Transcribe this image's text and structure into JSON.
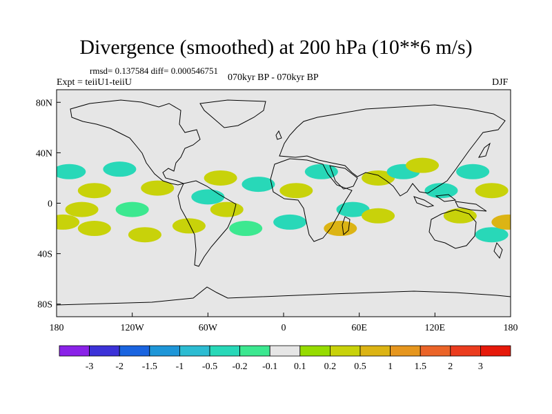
{
  "title": "Divergence (smoothed) at 200 hPa (10**6 m/s)",
  "stats": "rmsd= 0.137584 diff= 0.000546751",
  "experiment": "Expt = teiiU1-teiiU",
  "period": "070kyr BP - 070kyr BP",
  "season": "DJF",
  "map": {
    "lon_range": [
      -180,
      180
    ],
    "lat_range": [
      -90,
      90
    ],
    "background": "#e6e6e6",
    "coastline_color": "#000000"
  },
  "axes": {
    "x_ticks": [
      {
        "lon": -180,
        "label": "180"
      },
      {
        "lon": -120,
        "label": "120W"
      },
      {
        "lon": -60,
        "label": "60W"
      },
      {
        "lon": 0,
        "label": "0"
      },
      {
        "lon": 60,
        "label": "60E"
      },
      {
        "lon": 120,
        "label": "120E"
      },
      {
        "lon": 180,
        "label": "180"
      }
    ],
    "y_ticks": [
      {
        "lat": 80,
        "label": "80N"
      },
      {
        "lat": 40,
        "label": "40N"
      },
      {
        "lat": 0,
        "label": "0"
      },
      {
        "lat": -40,
        "label": "40S"
      },
      {
        "lat": -80,
        "label": "80S"
      }
    ]
  },
  "colorbar": {
    "colors": [
      "#8a22e8",
      "#3c32d8",
      "#1a64e0",
      "#1e96d8",
      "#2cbcd2",
      "#28d8b8",
      "#3ce890",
      "#e6e6e6",
      "#96dc00",
      "#c8d20a",
      "#dcb414",
      "#e6961e",
      "#eb6428",
      "#eb3c1e",
      "#e6190a"
    ],
    "labels": [
      "-3",
      "-2",
      "-1.5",
      "-1",
      "-0.5",
      "-0.2",
      "-0.1",
      "0.1",
      "0.2",
      "0.5",
      "1",
      "1.5",
      "2",
      "3"
    ]
  },
  "anomalies": [
    {
      "lon": -150,
      "lat": 10,
      "value": 0.3
    },
    {
      "lon": -160,
      "lat": -5,
      "value": 0.4
    },
    {
      "lon": -100,
      "lat": 12,
      "value": 0.3
    },
    {
      "lon": -170,
      "lat": 25,
      "value": -0.2
    },
    {
      "lon": -130,
      "lat": 27,
      "value": -0.2
    },
    {
      "lon": -120,
      "lat": -5,
      "value": -0.15
    },
    {
      "lon": -150,
      "lat": -20,
      "value": 0.3
    },
    {
      "lon": -175,
      "lat": -15,
      "value": 0.5
    },
    {
      "lon": -110,
      "lat": -25,
      "value": 0.3
    },
    {
      "lon": -75,
      "lat": -18,
      "value": 0.3
    },
    {
      "lon": -60,
      "lat": 5,
      "value": -0.2
    },
    {
      "lon": -50,
      "lat": 20,
      "value": 0.3
    },
    {
      "lon": -45,
      "lat": -5,
      "value": 0.4
    },
    {
      "lon": -20,
      "lat": 15,
      "value": -0.2
    },
    {
      "lon": -30,
      "lat": -20,
      "value": -0.15
    },
    {
      "lon": 10,
      "lat": 10,
      "value": 0.3
    },
    {
      "lon": 5,
      "lat": -15,
      "value": -0.2
    },
    {
      "lon": 30,
      "lat": 25,
      "value": -0.2
    },
    {
      "lon": 45,
      "lat": -20,
      "value": 0.6
    },
    {
      "lon": 55,
      "lat": -5,
      "value": -0.3
    },
    {
      "lon": 75,
      "lat": 20,
      "value": 0.3
    },
    {
      "lon": 75,
      "lat": -10,
      "value": 0.3
    },
    {
      "lon": 95,
      "lat": 25,
      "value": -0.2
    },
    {
      "lon": 110,
      "lat": 30,
      "value": 0.3
    },
    {
      "lon": 125,
      "lat": 10,
      "value": -0.4
    },
    {
      "lon": 140,
      "lat": -10,
      "value": 0.4
    },
    {
      "lon": 150,
      "lat": 25,
      "value": -0.2
    },
    {
      "lon": 165,
      "lat": 10,
      "value": 0.3
    },
    {
      "lon": 165,
      "lat": -25,
      "value": -0.2
    },
    {
      "lon": 178,
      "lat": -15,
      "value": 0.6
    }
  ]
}
